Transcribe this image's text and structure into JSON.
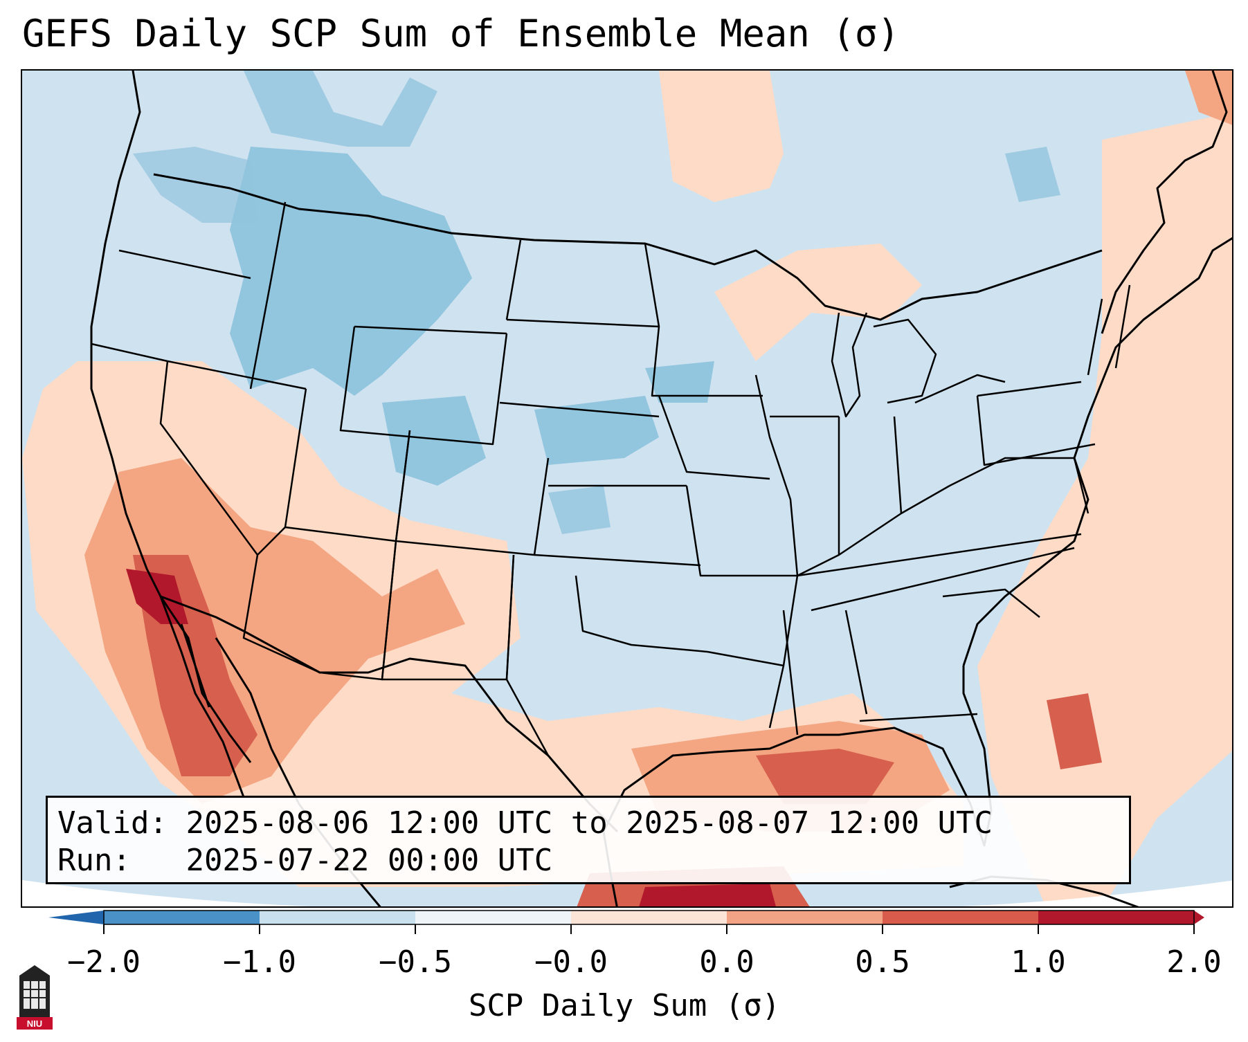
{
  "title": "GEFS Daily SCP Sum of Ensemble Mean (σ)",
  "info": {
    "valid_label": "Valid:",
    "valid_value": "2025-08-06 12:00 UTC to 2025-08-07 12:00 UTC",
    "run_label": "Run:",
    "run_value": "2025-07-22 00:00 UTC"
  },
  "colorbar": {
    "label": "SCP Daily Sum (σ)",
    "ticks": [
      "−2.0",
      "−1.0",
      "−0.5",
      "−0.0",
      "0.0",
      "0.5",
      "1.0",
      "2.0"
    ],
    "colors": [
      "#4a91c8",
      "#8fc1df",
      "#c9e0ee",
      "#eef4f8",
      "#fbe3d6",
      "#f3a385",
      "#d95b4b",
      "#b2182b"
    ],
    "extend_low_color": "#2166ac",
    "extend_high_color": "#b2182b"
  },
  "map": {
    "background_color": "#cfe2f0",
    "ocean_bottom_color": "#ffffff",
    "regions": [
      {
        "name": "northern-rockies-negative",
        "class": "neg-strong"
      },
      {
        "name": "plains-negative",
        "class": "neg-strong"
      },
      {
        "name": "southwest-positive",
        "class": "pos-weak"
      },
      {
        "name": "baja-california-positive",
        "class": "pos-strong"
      },
      {
        "name": "gulf-coast-positive",
        "class": "pos-mid"
      },
      {
        "name": "atlantic-positive",
        "class": "pos-weak"
      },
      {
        "name": "great-lakes-positive",
        "class": "pos-weak"
      }
    ]
  },
  "logo": {
    "text": "NIU"
  }
}
